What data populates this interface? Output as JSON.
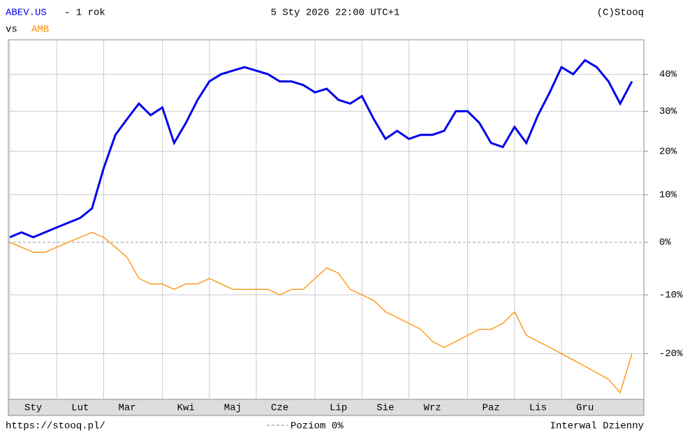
{
  "chart_data": {
    "type": "line",
    "title": "5 Sty 2026 22:00 UTC+1",
    "period": "- 1 rok",
    "vs_label": "vs",
    "credit": "(C)Stooq",
    "source": "https://stooq.pl/",
    "zero_line_label": "Poziom 0%",
    "interval": "Interwal Dzienny",
    "log_scale": true,
    "grid": true,
    "categories": [
      null,
      null,
      "Sty",
      null,
      null,
      null,
      "Lut",
      null,
      null,
      null,
      "Mar",
      null,
      null,
      null,
      null,
      "Kwi",
      null,
      null,
      null,
      "Maj",
      null,
      null,
      null,
      "Cze",
      null,
      null,
      null,
      null,
      "Lip",
      null,
      null,
      null,
      "Sie",
      null,
      null,
      null,
      "Wrz",
      null,
      null,
      null,
      null,
      "Paz",
      null,
      null,
      null,
      "Lis",
      null,
      null,
      null,
      "Gru",
      null,
      null,
      null,
      null
    ],
    "series": [
      {
        "name": "ABEV.US",
        "color": "#0000ee",
        "values": [
          1,
          2,
          1,
          2,
          3,
          4,
          5,
          7,
          16,
          24,
          28,
          32,
          29,
          31,
          22,
          27,
          33,
          38,
          40,
          41,
          42,
          41,
          40,
          38,
          38,
          37,
          35,
          36,
          33,
          32,
          34,
          28,
          23,
          25,
          23,
          24,
          24,
          25,
          30,
          30,
          27,
          22,
          21,
          26,
          22,
          29,
          35,
          42,
          40,
          44,
          42,
          38,
          32,
          38
        ]
      },
      {
        "name": "AMB",
        "color": "#ff8c00",
        "values": [
          0,
          -1,
          -2,
          -2,
          -1,
          0,
          1,
          2,
          1,
          -1,
          -3,
          -7,
          -8,
          -8,
          -9,
          -8,
          -8,
          -7,
          -8,
          -9,
          -9,
          -9,
          -9,
          -10,
          -9,
          -9,
          -7,
          -5,
          -6,
          -9,
          -10,
          -11,
          -13,
          -14,
          -15,
          -16,
          -18,
          -19,
          -18,
          -17,
          -16,
          -16,
          -15,
          -13,
          -17,
          -18,
          -19,
          -20,
          -21,
          -22,
          -23,
          -24,
          -26,
          -20
        ]
      }
    ],
    "ylim": [
      -27,
      50
    ],
    "yticks": [
      {
        "value": 40,
        "label": "40%"
      },
      {
        "value": 30,
        "label": "30%"
      },
      {
        "value": 20,
        "label": "20%"
      },
      {
        "value": 10,
        "label": "10%"
      },
      {
        "value": 0,
        "label": "0%"
      },
      {
        "value": -10,
        "label": "-10%"
      },
      {
        "value": -20,
        "label": "-20%"
      }
    ]
  }
}
